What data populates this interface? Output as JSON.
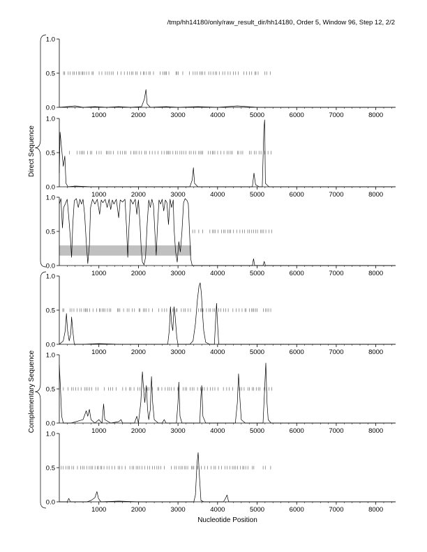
{
  "title": "/tmp/hh14180/only/raw_result_dir/hh14180, Order 5, Window 96, Step 12, 2/2",
  "xlabel": "Nucleotide Position",
  "group_labels": {
    "direct": "Direct Sequence",
    "complementary": "Complementary Sequence"
  },
  "chart_data": {
    "type": "line",
    "x_range": [
      0,
      8500
    ],
    "x_ticks": [
      "1000",
      "2000",
      "3000",
      "4000",
      "5000",
      "6000",
      "7000",
      "8000"
    ],
    "y_range": [
      0,
      1
    ],
    "y_ticks": [
      "0.0",
      "0.5",
      "1.0"
    ],
    "grid": false,
    "panels": [
      {
        "group": "direct",
        "trace": [
          [
            0,
            0
          ],
          [
            200,
            0.01
          ],
          [
            400,
            0.02
          ],
          [
            600,
            0.0
          ],
          [
            900,
            0.01
          ],
          [
            1200,
            0.0
          ],
          [
            1500,
            0.01
          ],
          [
            1800,
            0.0
          ],
          [
            2080,
            0.01
          ],
          [
            2150,
            0.12
          ],
          [
            2190,
            0.26
          ],
          [
            2220,
            0.05
          ],
          [
            2300,
            0.0
          ],
          [
            2700,
            0.01
          ],
          [
            3000,
            0.0
          ],
          [
            3500,
            0.01
          ],
          [
            4000,
            0.0
          ],
          [
            4500,
            0.02
          ],
          [
            5000,
            0.0
          ],
          [
            6000,
            0.0
          ],
          [
            7000,
            0.0
          ],
          [
            8500,
            0.0
          ]
        ],
        "codon_marks_y": 0.5,
        "codon_marks_range": [
          0,
          5350
        ],
        "shaded_band": null
      },
      {
        "group": "direct",
        "trace": [
          [
            0,
            0.2
          ],
          [
            20,
            0.8
          ],
          [
            60,
            0.55
          ],
          [
            100,
            0.3
          ],
          [
            140,
            0.45
          ],
          [
            170,
            0.05
          ],
          [
            220,
            0.0
          ],
          [
            400,
            0.01
          ],
          [
            800,
            0.0
          ],
          [
            1500,
            0.0
          ],
          [
            2500,
            0.0
          ],
          [
            3300,
            0.0
          ],
          [
            3360,
            0.1
          ],
          [
            3390,
            0.28
          ],
          [
            3420,
            0.05
          ],
          [
            3500,
            0.0
          ],
          [
            4800,
            0.0
          ],
          [
            4880,
            0.0
          ],
          [
            4920,
            0.2
          ],
          [
            4960,
            0.03
          ],
          [
            5050,
            0.0
          ],
          [
            5130,
            0.0
          ],
          [
            5170,
            0.85
          ],
          [
            5190,
            0.98
          ],
          [
            5210,
            0.05
          ],
          [
            5300,
            0.0
          ],
          [
            8500,
            0.0
          ]
        ],
        "codon_marks_y": 0.5,
        "codon_marks_range": [
          200,
          5400
        ],
        "shaded_band": null
      },
      {
        "group": "direct",
        "trace": [
          [
            0,
            0.9
          ],
          [
            40,
            0.98
          ],
          [
            80,
            0.55
          ],
          [
            110,
            0.85
          ],
          [
            150,
            0.9
          ],
          [
            200,
            0.97
          ],
          [
            240,
            0.7
          ],
          [
            280,
            0.4
          ],
          [
            310,
            0.12
          ],
          [
            340,
            0.6
          ],
          [
            380,
            0.95
          ],
          [
            430,
            0.98
          ],
          [
            480,
            0.85
          ],
          [
            520,
            0.97
          ],
          [
            560,
            0.9
          ],
          [
            600,
            0.97
          ],
          [
            640,
            0.75
          ],
          [
            680,
            0.35
          ],
          [
            720,
            0.03
          ],
          [
            760,
            0.3
          ],
          [
            790,
            0.85
          ],
          [
            840,
            0.97
          ],
          [
            900,
            0.9
          ],
          [
            960,
            0.97
          ],
          [
            1020,
            0.75
          ],
          [
            1060,
            0.96
          ],
          [
            1100,
            0.92
          ],
          [
            1160,
            0.97
          ],
          [
            1210,
            0.85
          ],
          [
            1260,
            0.97
          ],
          [
            1300,
            0.82
          ],
          [
            1340,
            0.96
          ],
          [
            1380,
            0.9
          ],
          [
            1440,
            0.97
          ],
          [
            1500,
            0.7
          ],
          [
            1540,
            0.96
          ],
          [
            1600,
            0.93
          ],
          [
            1660,
            0.97
          ],
          [
            1700,
            0.55
          ],
          [
            1730,
            0.12
          ],
          [
            1760,
            0.55
          ],
          [
            1800,
            0.97
          ],
          [
            1860,
            0.9
          ],
          [
            1920,
            0.97
          ],
          [
            1960,
            0.75
          ],
          [
            2000,
            0.96
          ],
          [
            2040,
            0.6
          ],
          [
            2070,
            0.25
          ],
          [
            2100,
            0.05
          ],
          [
            2140,
            0.01
          ],
          [
            2180,
            0.12
          ],
          [
            2220,
            0.6
          ],
          [
            2260,
            0.96
          ],
          [
            2300,
            0.85
          ],
          [
            2340,
            0.97
          ],
          [
            2380,
            0.88
          ],
          [
            2420,
            0.45
          ],
          [
            2450,
            0.15
          ],
          [
            2480,
            0.55
          ],
          [
            2520,
            0.96
          ],
          [
            2560,
            0.9
          ],
          [
            2600,
            0.97
          ],
          [
            2640,
            0.8
          ],
          [
            2680,
            0.96
          ],
          [
            2720,
            0.92
          ],
          [
            2760,
            0.6
          ],
          [
            2800,
            0.97
          ],
          [
            2840,
            0.85
          ],
          [
            2880,
            0.96
          ],
          [
            2900,
            0.55
          ],
          [
            2940,
            0.2
          ],
          [
            2980,
            0.05
          ],
          [
            3020,
            0.35
          ],
          [
            3060,
            0.2
          ],
          [
            3100,
            0.5
          ],
          [
            3140,
            0.92
          ],
          [
            3180,
            0.98
          ],
          [
            3230,
            0.95
          ],
          [
            3260,
            0.9
          ],
          [
            3290,
            0.5
          ],
          [
            3320,
            0.1
          ],
          [
            3360,
            0.0
          ],
          [
            3500,
            0.0
          ],
          [
            4000,
            0.0
          ],
          [
            4800,
            0.0
          ],
          [
            4880,
            0.0
          ],
          [
            4910,
            0.1
          ],
          [
            4940,
            0.0
          ],
          [
            5150,
            0.0
          ],
          [
            5180,
            0.06
          ],
          [
            5210,
            0.0
          ],
          [
            8500,
            0.0
          ]
        ],
        "codon_marks_y": 0.5,
        "codon_marks_range": [
          3300,
          5400
        ],
        "shaded_band": {
          "x": [
            0,
            3330
          ],
          "y": [
            0.15,
            0.29
          ]
        }
      },
      {
        "group": "complementary",
        "trace": [
          [
            0,
            0.0
          ],
          [
            100,
            0.05
          ],
          [
            150,
            0.2
          ],
          [
            180,
            0.45
          ],
          [
            210,
            0.2
          ],
          [
            250,
            0.05
          ],
          [
            290,
            0.15
          ],
          [
            310,
            0.4
          ],
          [
            340,
            0.2
          ],
          [
            380,
            0.0
          ],
          [
            600,
            0.0
          ],
          [
            1000,
            0.01
          ],
          [
            1500,
            0.0
          ],
          [
            2500,
            0.0
          ],
          [
            2740,
            0.0
          ],
          [
            2780,
            0.2
          ],
          [
            2810,
            0.55
          ],
          [
            2840,
            0.3
          ],
          [
            2870,
            0.2
          ],
          [
            2900,
            0.55
          ],
          [
            2930,
            0.4
          ],
          [
            2970,
            0.1
          ],
          [
            3000,
            0.0
          ],
          [
            3300,
            0.0
          ],
          [
            3380,
            0.05
          ],
          [
            3440,
            0.3
          ],
          [
            3490,
            0.65
          ],
          [
            3530,
            0.85
          ],
          [
            3560,
            0.9
          ],
          [
            3590,
            0.75
          ],
          [
            3620,
            0.45
          ],
          [
            3650,
            0.2
          ],
          [
            3700,
            0.03
          ],
          [
            3800,
            0.0
          ],
          [
            3920,
            0.0
          ],
          [
            3950,
            0.35
          ],
          [
            3975,
            0.6
          ],
          [
            4000,
            0.3
          ],
          [
            4030,
            0.0
          ],
          [
            4500,
            0.0
          ],
          [
            8500,
            0.0
          ]
        ],
        "codon_marks_y": 0.5,
        "codon_marks_range": [
          0,
          5400
        ],
        "shaded_band": null
      },
      {
        "group": "complementary",
        "trace": [
          [
            0,
            0.85
          ],
          [
            30,
            0.5
          ],
          [
            60,
            0.1
          ],
          [
            100,
            0.0
          ],
          [
            300,
            0.0
          ],
          [
            600,
            0.05
          ],
          [
            680,
            0.18
          ],
          [
            720,
            0.1
          ],
          [
            760,
            0.2
          ],
          [
            800,
            0.05
          ],
          [
            900,
            0.0
          ],
          [
            1000,
            0.05
          ],
          [
            1080,
            0.0
          ],
          [
            1120,
            0.28
          ],
          [
            1150,
            0.05
          ],
          [
            1300,
            0.0
          ],
          [
            1500,
            0.02
          ],
          [
            1560,
            0.05
          ],
          [
            1600,
            0.0
          ],
          [
            1900,
            0.0
          ],
          [
            1960,
            0.1
          ],
          [
            2000,
            0.0
          ],
          [
            2060,
            0.3
          ],
          [
            2100,
            0.75
          ],
          [
            2130,
            0.5
          ],
          [
            2160,
            0.3
          ],
          [
            2200,
            0.55
          ],
          [
            2230,
            0.2
          ],
          [
            2260,
            0.05
          ],
          [
            2300,
            0.2
          ],
          [
            2330,
            0.68
          ],
          [
            2360,
            0.3
          ],
          [
            2400,
            0.05
          ],
          [
            2500,
            0.0
          ],
          [
            2600,
            0.0
          ],
          [
            2650,
            0.05
          ],
          [
            2700,
            0.0
          ],
          [
            2960,
            0.0
          ],
          [
            3000,
            0.3
          ],
          [
            3020,
            0.6
          ],
          [
            3050,
            0.1
          ],
          [
            3100,
            0.0
          ],
          [
            3550,
            0.0
          ],
          [
            3580,
            0.4
          ],
          [
            3600,
            0.55
          ],
          [
            3630,
            0.1
          ],
          [
            3700,
            0.0
          ],
          [
            4450,
            0.0
          ],
          [
            4500,
            0.3
          ],
          [
            4530,
            0.72
          ],
          [
            4560,
            0.4
          ],
          [
            4600,
            0.05
          ],
          [
            4700,
            0.0
          ],
          [
            5150,
            0.0
          ],
          [
            5190,
            0.5
          ],
          [
            5220,
            0.88
          ],
          [
            5250,
            0.3
          ],
          [
            5280,
            0.05
          ],
          [
            5350,
            0.0
          ],
          [
            8500,
            0.0
          ]
        ],
        "codon_marks_y": 0.5,
        "codon_marks_range": [
          0,
          5400
        ],
        "shaded_band": null
      },
      {
        "group": "complementary",
        "trace": [
          [
            0,
            0.0
          ],
          [
            200,
            0.0
          ],
          [
            240,
            0.05
          ],
          [
            280,
            0.0
          ],
          [
            700,
            0.0
          ],
          [
            800,
            0.02
          ],
          [
            900,
            0.06
          ],
          [
            950,
            0.15
          ],
          [
            990,
            0.05
          ],
          [
            1050,
            0.0
          ],
          [
            1500,
            0.01
          ],
          [
            2000,
            0.0
          ],
          [
            2500,
            0.0
          ],
          [
            3000,
            0.0
          ],
          [
            3400,
            0.0
          ],
          [
            3440,
            0.1
          ],
          [
            3480,
            0.55
          ],
          [
            3510,
            0.72
          ],
          [
            3540,
            0.4
          ],
          [
            3580,
            0.02
          ],
          [
            3650,
            0.0
          ],
          [
            4150,
            0.0
          ],
          [
            4200,
            0.05
          ],
          [
            4240,
            0.1
          ],
          [
            4280,
            0.0
          ],
          [
            5000,
            0.0
          ],
          [
            8500,
            0.0
          ]
        ],
        "codon_marks_y": 0.5,
        "codon_marks_range": [
          0,
          5400
        ],
        "shaded_band": null
      }
    ]
  }
}
